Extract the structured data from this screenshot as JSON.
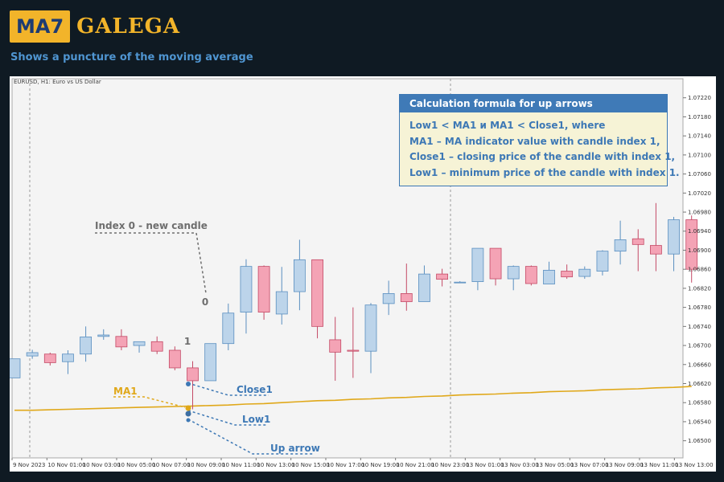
{
  "header": {
    "logo_box": "MA7",
    "logo_text": "GALEGA",
    "subtitle": "Shows a puncture of the moving average"
  },
  "colors": {
    "background": "#0f1a23",
    "accent": "#f2b42a",
    "bull": "#bcd4ea",
    "bear": "#f4a3b5",
    "ma_line": "#e0a81a",
    "label_blue": "#3d78b5"
  },
  "chart_data": {
    "type": "candlestick",
    "title": "EURUSD, H1:  Euro vs US Dollar",
    "ylim": [
      1.06464,
      1.0726
    ],
    "price_ticks": [
      "1.07220",
      "1.07180",
      "1.07140",
      "1.07100",
      "1.07060",
      "1.07020",
      "1.06980",
      "1.06940",
      "1.06900",
      "1.06860",
      "1.06820",
      "1.06780",
      "1.06740",
      "1.06700",
      "1.06660",
      "1.06620",
      "1.06580",
      "1.06540",
      "1.06500"
    ],
    "time_labels": [
      "9 Nov 2023",
      "10 Nov 01:00",
      "10 Nov 03:00",
      "10 Nov 05:00",
      "10 Nov 07:00",
      "10 Nov 09:00",
      "10 Nov 11:00",
      "10 Nov 13:00",
      "10 Nov 15:00",
      "10 Nov 17:00",
      "10 Nov 19:00",
      "10 Nov 21:00",
      "10 Nov 23:00",
      "13 Nov 01:00",
      "13 Nov 03:00",
      "13 Nov 05:00",
      "13 Nov 07:00",
      "13 Nov 09:00",
      "13 Nov 11:00",
      "13 Nov 13:00"
    ],
    "candles": [
      {
        "o": 1.06632,
        "h": 1.06672,
        "l": 1.06632,
        "c": 1.06672
      },
      {
        "o": 1.06678,
        "h": 1.06691,
        "l": 1.06672,
        "c": 1.06685
      },
      {
        "o": 1.06682,
        "h": 1.06685,
        "l": 1.06658,
        "c": 1.06664
      },
      {
        "o": 1.06666,
        "h": 1.0669,
        "l": 1.0664,
        "c": 1.06682
      },
      {
        "o": 1.06682,
        "h": 1.0674,
        "l": 1.06666,
        "c": 1.06718
      },
      {
        "o": 1.06719,
        "h": 1.06734,
        "l": 1.06712,
        "c": 1.06722
      },
      {
        "o": 1.06719,
        "h": 1.06734,
        "l": 1.0669,
        "c": 1.06697
      },
      {
        "o": 1.067,
        "h": 1.06708,
        "l": 1.06685,
        "c": 1.06708
      },
      {
        "o": 1.06708,
        "h": 1.06719,
        "l": 1.06682,
        "c": 1.06688
      },
      {
        "o": 1.0669,
        "h": 1.06698,
        "l": 1.06648,
        "c": 1.06653
      },
      {
        "o": 1.06653,
        "h": 1.06667,
        "l": 1.06566,
        "c": 1.06626
      },
      {
        "o": 1.06626,
        "h": 1.067,
        "l": 1.06626,
        "c": 1.06704
      },
      {
        "o": 1.06704,
        "h": 1.06788,
        "l": 1.0669,
        "c": 1.06768
      },
      {
        "o": 1.0677,
        "h": 1.06881,
        "l": 1.06725,
        "c": 1.06866
      },
      {
        "o": 1.06866,
        "h": 1.06868,
        "l": 1.06754,
        "c": 1.0677
      },
      {
        "o": 1.06766,
        "h": 1.06865,
        "l": 1.06744,
        "c": 1.06813
      },
      {
        "o": 1.06813,
        "h": 1.06922,
        "l": 1.06774,
        "c": 1.0688
      },
      {
        "o": 1.0688,
        "h": 1.0688,
        "l": 1.06715,
        "c": 1.0674
      },
      {
        "o": 1.06712,
        "h": 1.0676,
        "l": 1.06626,
        "c": 1.06686
      },
      {
        "o": 1.0669,
        "h": 1.0678,
        "l": 1.06632,
        "c": 1.06688
      },
      {
        "o": 1.06688,
        "h": 1.06789,
        "l": 1.06642,
        "c": 1.06785
      },
      {
        "o": 1.06788,
        "h": 1.06836,
        "l": 1.06764,
        "c": 1.06809
      },
      {
        "o": 1.06809,
        "h": 1.06872,
        "l": 1.06773,
        "c": 1.06792
      },
      {
        "o": 1.06792,
        "h": 1.06868,
        "l": 1.06792,
        "c": 1.0685
      },
      {
        "o": 1.0685,
        "h": 1.06861,
        "l": 1.06824,
        "c": 1.06839
      },
      {
        "o": 1.06833,
        "h": 1.06835,
        "l": 1.06831,
        "c": 1.06833
      },
      {
        "o": 1.06834,
        "h": 1.06904,
        "l": 1.06816,
        "c": 1.06904
      },
      {
        "o": 1.06904,
        "h": 1.06904,
        "l": 1.06826,
        "c": 1.0684
      },
      {
        "o": 1.0684,
        "h": 1.06868,
        "l": 1.06816,
        "c": 1.06866
      },
      {
        "o": 1.06866,
        "h": 1.06868,
        "l": 1.06826,
        "c": 1.0683
      },
      {
        "o": 1.06829,
        "h": 1.06876,
        "l": 1.06829,
        "c": 1.06858
      },
      {
        "o": 1.06856,
        "h": 1.0687,
        "l": 1.0684,
        "c": 1.06844
      },
      {
        "o": 1.06845,
        "h": 1.06866,
        "l": 1.0684,
        "c": 1.0686
      },
      {
        "o": 1.06856,
        "h": 1.069,
        "l": 1.06847,
        "c": 1.06898
      },
      {
        "o": 1.06898,
        "h": 1.06962,
        "l": 1.0687,
        "c": 1.06922
      },
      {
        "o": 1.06924,
        "h": 1.06944,
        "l": 1.06856,
        "c": 1.06912
      },
      {
        "o": 1.0691,
        "h": 1.06999,
        "l": 1.06856,
        "c": 1.06892
      },
      {
        "o": 1.06892,
        "h": 1.0697,
        "l": 1.06856,
        "c": 1.06964
      },
      {
        "o": 1.06964,
        "h": 1.06973,
        "l": 1.06832,
        "c": 1.0686
      }
    ],
    "ma": [
      1.06564,
      1.06564,
      1.06565,
      1.06566,
      1.06567,
      1.06568,
      1.06569,
      1.0657,
      1.06571,
      1.06572,
      1.06573,
      1.06574,
      1.06575,
      1.06577,
      1.06578,
      1.0658,
      1.06582,
      1.06584,
      1.06585,
      1.06587,
      1.06588,
      1.0659,
      1.06591,
      1.06593,
      1.06594,
      1.06596,
      1.06597,
      1.06598,
      1.066,
      1.06601,
      1.06603,
      1.06604,
      1.06605,
      1.06607,
      1.06608,
      1.06609,
      1.06611,
      1.06612,
      1.06614
    ],
    "annotations": {
      "index0_label": "Index 0 - new candle",
      "zero_label": "0",
      "one_label": "1",
      "ma1_label": "MA1",
      "close1_label": "Close1",
      "low1_label": "Low1",
      "up_arrow_label": "Up arrow"
    }
  },
  "info_box": {
    "title": "Calculation formula for up arrows",
    "lines": [
      "Low1 < MA1 и MA1 < Close1, where",
      "MA1 – MA indicator value with candle index 1,",
      "Close1 – closing price of the candle with index 1,",
      "Low1 – minimum price of the candle with index 1."
    ]
  }
}
